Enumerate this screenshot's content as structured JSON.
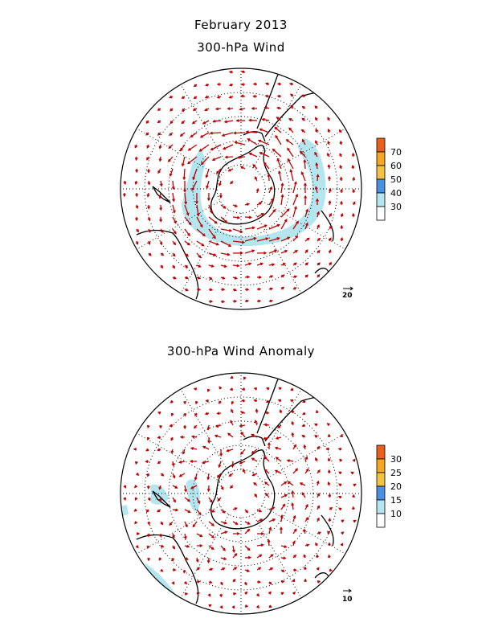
{
  "header": {
    "title": "February 2013",
    "subtitle": "300-hPa Wind",
    "anomaly_title": "300-hPa Wind Anomaly"
  },
  "panels": [
    {
      "name": "wind",
      "colorbar": {
        "labels": [
          "30",
          "40",
          "50",
          "60",
          "70"
        ],
        "colors": [
          "#ffffff",
          "#b4e6f0",
          "#4a90e2",
          "#f5c242",
          "#f5a623",
          "#e8601c"
        ]
      },
      "ref_vector_label": "20"
    },
    {
      "name": "anomaly",
      "colorbar": {
        "labels": [
          "10",
          "15",
          "20",
          "25",
          "30"
        ],
        "colors": [
          "#ffffff",
          "#b4e6f0",
          "#4a90e2",
          "#f5c242",
          "#f5a623",
          "#e8601c"
        ]
      },
      "ref_vector_label": "10"
    }
  ],
  "colors": {
    "vector": "#c00000",
    "coast": "#000000",
    "shade": "#b4e6f0"
  }
}
